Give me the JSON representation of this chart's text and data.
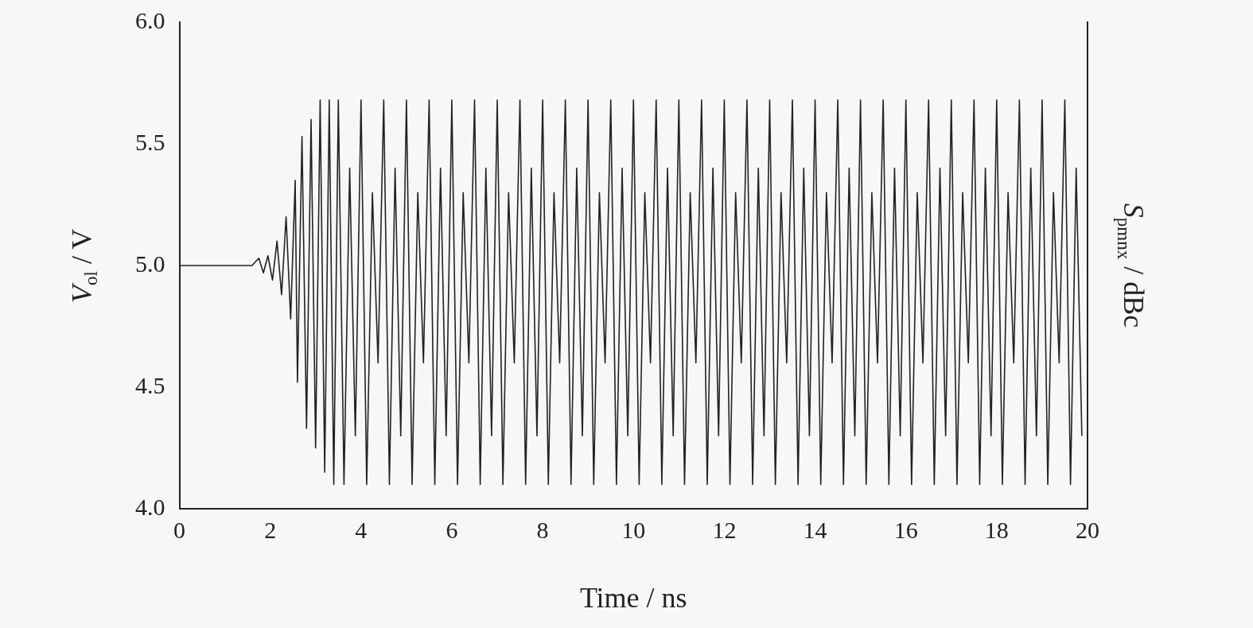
{
  "chart_data": {
    "type": "line",
    "xlabel": "Time / ns",
    "ylabel": "V$_{ol}$ / V",
    "y2label": "S$_{pmnx}$ / dBc",
    "xlim": [
      0,
      20
    ],
    "xticks": [
      0,
      2,
      4,
      6,
      8,
      10,
      12,
      14,
      16,
      18,
      20
    ],
    "ylim": [
      4,
      6
    ],
    "yticks": [
      {
        "value": 4,
        "label": "4.0"
      },
      {
        "value": 4.5,
        "label": "4.5"
      },
      {
        "value": 5,
        "label": "5.0"
      },
      {
        "value": 5.5,
        "label": "5.5"
      },
      {
        "value": 6,
        "label": "6.0"
      }
    ],
    "grid": false,
    "legend": false,
    "marker": "none",
    "line_style": "solid",
    "series": [
      {
        "color": "#222222",
        "x": [
          0,
          1.6,
          1.75,
          1.85,
          1.95,
          2.05,
          2.15,
          2.25,
          2.35,
          2.45,
          2.55,
          2.6,
          2.7,
          2.8,
          2.9,
          3.0,
          3.1,
          3.2,
          3.3,
          3.4,
          3.5,
          3.625,
          3.75,
          3.875,
          4,
          4.125,
          4.25,
          4.375,
          4.5,
          4.625,
          4.75,
          4.875,
          5,
          5.125,
          5.25,
          5.375,
          5.5,
          5.625,
          5.75,
          5.875,
          6,
          6.125,
          6.25,
          6.375,
          6.5,
          6.625,
          6.75,
          6.875,
          7,
          7.125,
          7.25,
          7.375,
          7.5,
          7.625,
          7.75,
          7.875,
          8,
          8.125,
          8.25,
          8.375,
          8.5,
          8.625,
          8.75,
          8.875,
          9,
          9.125,
          9.25,
          9.375,
          9.5,
          9.625,
          9.75,
          9.875,
          10,
          10.125,
          10.25,
          10.375,
          10.5,
          10.625,
          10.75,
          10.875,
          11,
          11.125,
          11.25,
          11.375,
          11.5,
          11.625,
          11.75,
          11.875,
          12,
          12.125,
          12.25,
          12.375,
          12.5,
          12.625,
          12.75,
          12.875,
          13,
          13.125,
          13.25,
          13.375,
          13.5,
          13.625,
          13.75,
          13.875,
          14,
          14.125,
          14.25,
          14.375,
          14.5,
          14.625,
          14.75,
          14.875,
          15,
          15.125,
          15.25,
          15.375,
          15.5,
          15.625,
          15.75,
          15.875,
          16,
          16.125,
          16.25,
          16.375,
          16.5,
          16.625,
          16.75,
          16.875,
          17,
          17.125,
          17.25,
          17.375,
          17.5,
          17.625,
          17.75,
          17.875,
          18,
          18.125,
          18.25,
          18.375,
          18.5,
          18.625,
          18.75,
          18.875,
          19,
          19.125,
          19.25,
          19.375,
          19.5,
          19.625,
          19.75,
          19.875
        ],
        "values": [
          5.0,
          5.0,
          5.03,
          4.97,
          5.04,
          4.94,
          5.1,
          4.88,
          5.2,
          4.78,
          5.35,
          4.52,
          5.53,
          4.33,
          5.6,
          4.25,
          5.68,
          4.15,
          5.68,
          4.1,
          5.68,
          4.1,
          5.4,
          4.3,
          5.68,
          4.1,
          5.3,
          4.6,
          5.68,
          4.1,
          5.4,
          4.3,
          5.68,
          4.1,
          5.3,
          4.6,
          5.68,
          4.1,
          5.4,
          4.3,
          5.68,
          4.1,
          5.3,
          4.6,
          5.68,
          4.1,
          5.4,
          4.3,
          5.68,
          4.1,
          5.3,
          4.6,
          5.68,
          4.1,
          5.4,
          4.3,
          5.68,
          4.1,
          5.3,
          4.6,
          5.68,
          4.1,
          5.4,
          4.3,
          5.68,
          4.1,
          5.3,
          4.6,
          5.68,
          4.1,
          5.4,
          4.3,
          5.68,
          4.1,
          5.3,
          4.6,
          5.68,
          4.1,
          5.4,
          4.3,
          5.68,
          4.1,
          5.3,
          4.6,
          5.68,
          4.1,
          5.4,
          4.3,
          5.68,
          4.1,
          5.3,
          4.6,
          5.68,
          4.1,
          5.4,
          4.3,
          5.68,
          4.1,
          5.3,
          4.6,
          5.68,
          4.1,
          5.4,
          4.3,
          5.68,
          4.1,
          5.3,
          4.6,
          5.68,
          4.1,
          5.4,
          4.3,
          5.68,
          4.1,
          5.3,
          4.6,
          5.68,
          4.1,
          5.4,
          4.3,
          5.68,
          4.1,
          5.3,
          4.6,
          5.68,
          4.1,
          5.4,
          4.3,
          5.68,
          4.1,
          5.3,
          4.6,
          5.68,
          4.1,
          5.4,
          4.3,
          5.68,
          4.1,
          5.3,
          4.6,
          5.68,
          4.1,
          5.4,
          4.3,
          5.68,
          4.1,
          5.3,
          4.6,
          5.68,
          4.1,
          5.4,
          4.3
        ]
      }
    ]
  }
}
